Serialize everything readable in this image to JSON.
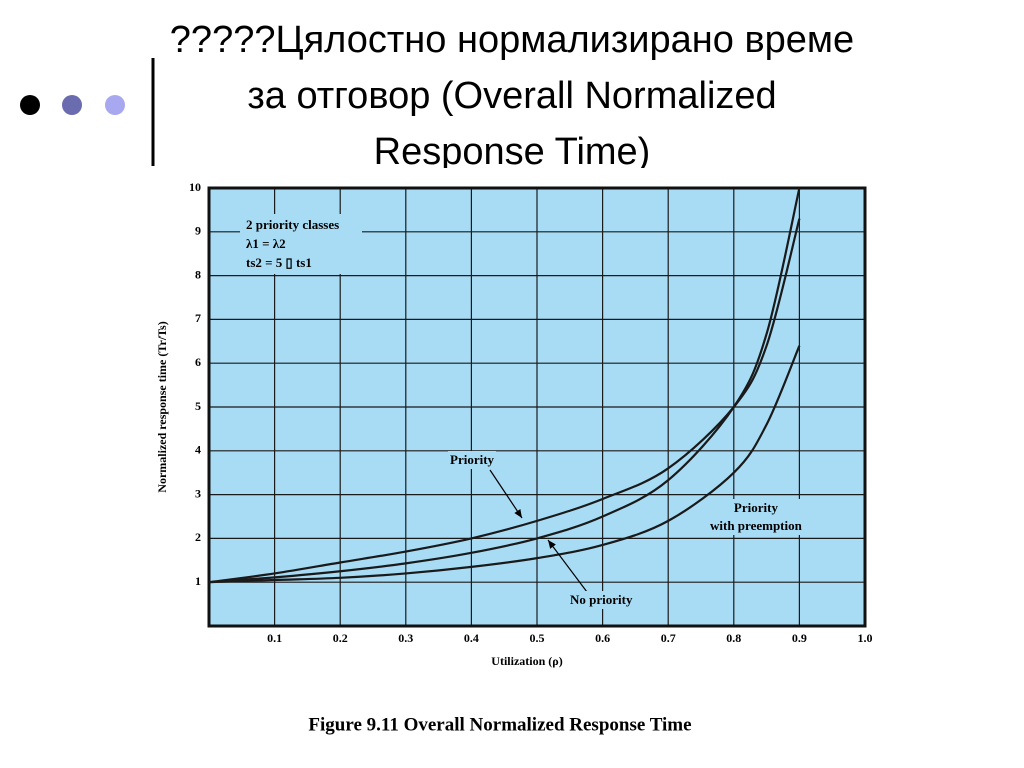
{
  "slide_title": "?????Цялостно нормализирано време\nза отговор (Overall Normalized\nResponse Time)",
  "chart_data": {
    "type": "line",
    "caption": "Figure 9.11 Overall Normalized Response Time",
    "xlabel": "Utilization (ρ)",
    "ylabel": "Normalized response time (Tr/Ts)",
    "annotations": [
      "2 priority classes",
      "λ1 = λ2",
      "ts2 = 5 ▯ ts1"
    ],
    "x": [
      0,
      0.1,
      0.2,
      0.3,
      0.4,
      0.5,
      0.6,
      0.7,
      0.8,
      0.85,
      0.9
    ],
    "series": [
      {
        "name": "Priority",
        "color": "#1a1a1a",
        "values": [
          1,
          1.2,
          1.45,
          1.7,
          2.0,
          2.4,
          2.9,
          3.6,
          5.0,
          6.4,
          9.3
        ]
      },
      {
        "name": "Priority\nwith preemption",
        "color": "#1a1a1a",
        "values": [
          1,
          1.05,
          1.1,
          1.2,
          1.35,
          1.55,
          1.85,
          2.4,
          3.5,
          4.6,
          6.4
        ]
      },
      {
        "name": "No priority",
        "color": "#1a1a1a",
        "values": [
          1,
          1.11,
          1.25,
          1.43,
          1.67,
          2.0,
          2.5,
          3.33,
          5.0,
          6.67,
          10
        ]
      }
    ],
    "xlim": [
      0,
      1
    ],
    "xticks": [
      0.1,
      0.2,
      0.3,
      0.4,
      0.5,
      0.6,
      0.7,
      0.8,
      0.9,
      {
        "value": 1,
        "label": "1.0"
      }
    ],
    "ylim": [
      0,
      10
    ],
    "yticks": [
      1,
      2,
      3,
      4,
      5,
      6,
      7,
      8,
      9,
      10
    ],
    "grid": true,
    "background": "#a8dcf5"
  }
}
